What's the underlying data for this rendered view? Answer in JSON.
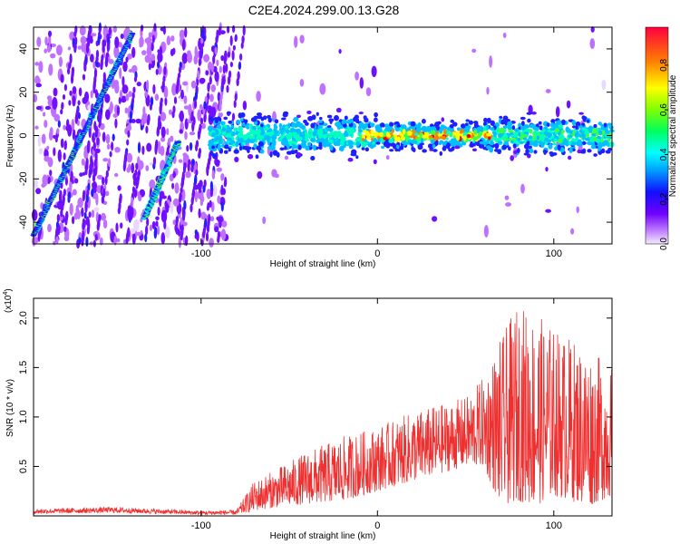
{
  "title": "C2E4.2024.299.00.13.G28",
  "chart_data": [
    {
      "type": "heatmap",
      "xlabel": "Height of straight line (km)",
      "ylabel": "Frequency (Hz)",
      "xlim": [
        -195,
        133
      ],
      "ylim": [
        -50,
        50
      ],
      "xticks": [
        -100,
        0,
        100
      ],
      "yticks": [
        -40,
        -20,
        0,
        20,
        40
      ],
      "colorbar": {
        "label": "Normalized spectral amplitude",
        "range": [
          0,
          0.97
        ],
        "ticks": [
          0.0,
          0.2,
          0.4,
          0.6,
          0.8
        ]
      },
      "features": [
        {
          "name": "slanted-trace-1",
          "x": [
            -195,
            -139
          ],
          "y": [
            -46,
            47
          ]
        },
        {
          "name": "slanted-trace-2",
          "x": [
            -132,
            -113
          ],
          "y": [
            -38,
            -3
          ]
        },
        {
          "name": "band-center",
          "x": [
            -95,
            133
          ],
          "y": [
            0,
            0
          ]
        }
      ],
      "colors": [
        "#e8d8ff",
        "#c070ff",
        "#7010ff",
        "#2020ff",
        "#00c0ff",
        "#00ffc0",
        "#40ff40",
        "#ffff00",
        "#ff8000",
        "#ff0000"
      ]
    },
    {
      "type": "line",
      "xlabel": "Height of straight line (km)",
      "ylabel": "SNR (10 * v/v)",
      "scale_label": "(x10",
      "scale_exp": "4",
      "xlim": [
        -195,
        133
      ],
      "ylim": [
        0,
        2.2
      ],
      "xticks": [
        -100,
        0,
        100
      ],
      "yticks": [
        0.5,
        1.0,
        1.5,
        2.0
      ],
      "envelope": {
        "x": [
          -195,
          -150,
          -100,
          -80,
          -70,
          -60,
          -40,
          -20,
          0,
          20,
          40,
          50,
          60,
          70,
          80,
          90,
          100,
          110,
          120,
          133
        ],
        "low": [
          0.02,
          0.03,
          0.01,
          0.01,
          0.05,
          0.08,
          0.12,
          0.15,
          0.25,
          0.35,
          0.45,
          0.5,
          0.5,
          0.1,
          0.15,
          0.1,
          0.2,
          0.15,
          0.1,
          0.2
        ],
        "high": [
          0.07,
          0.09,
          0.05,
          0.06,
          0.35,
          0.45,
          0.65,
          0.8,
          0.9,
          1.05,
          1.15,
          1.2,
          1.4,
          1.8,
          2.15,
          2.05,
          1.9,
          1.8,
          1.7,
          1.5
        ]
      },
      "color": "#ee3030"
    }
  ]
}
